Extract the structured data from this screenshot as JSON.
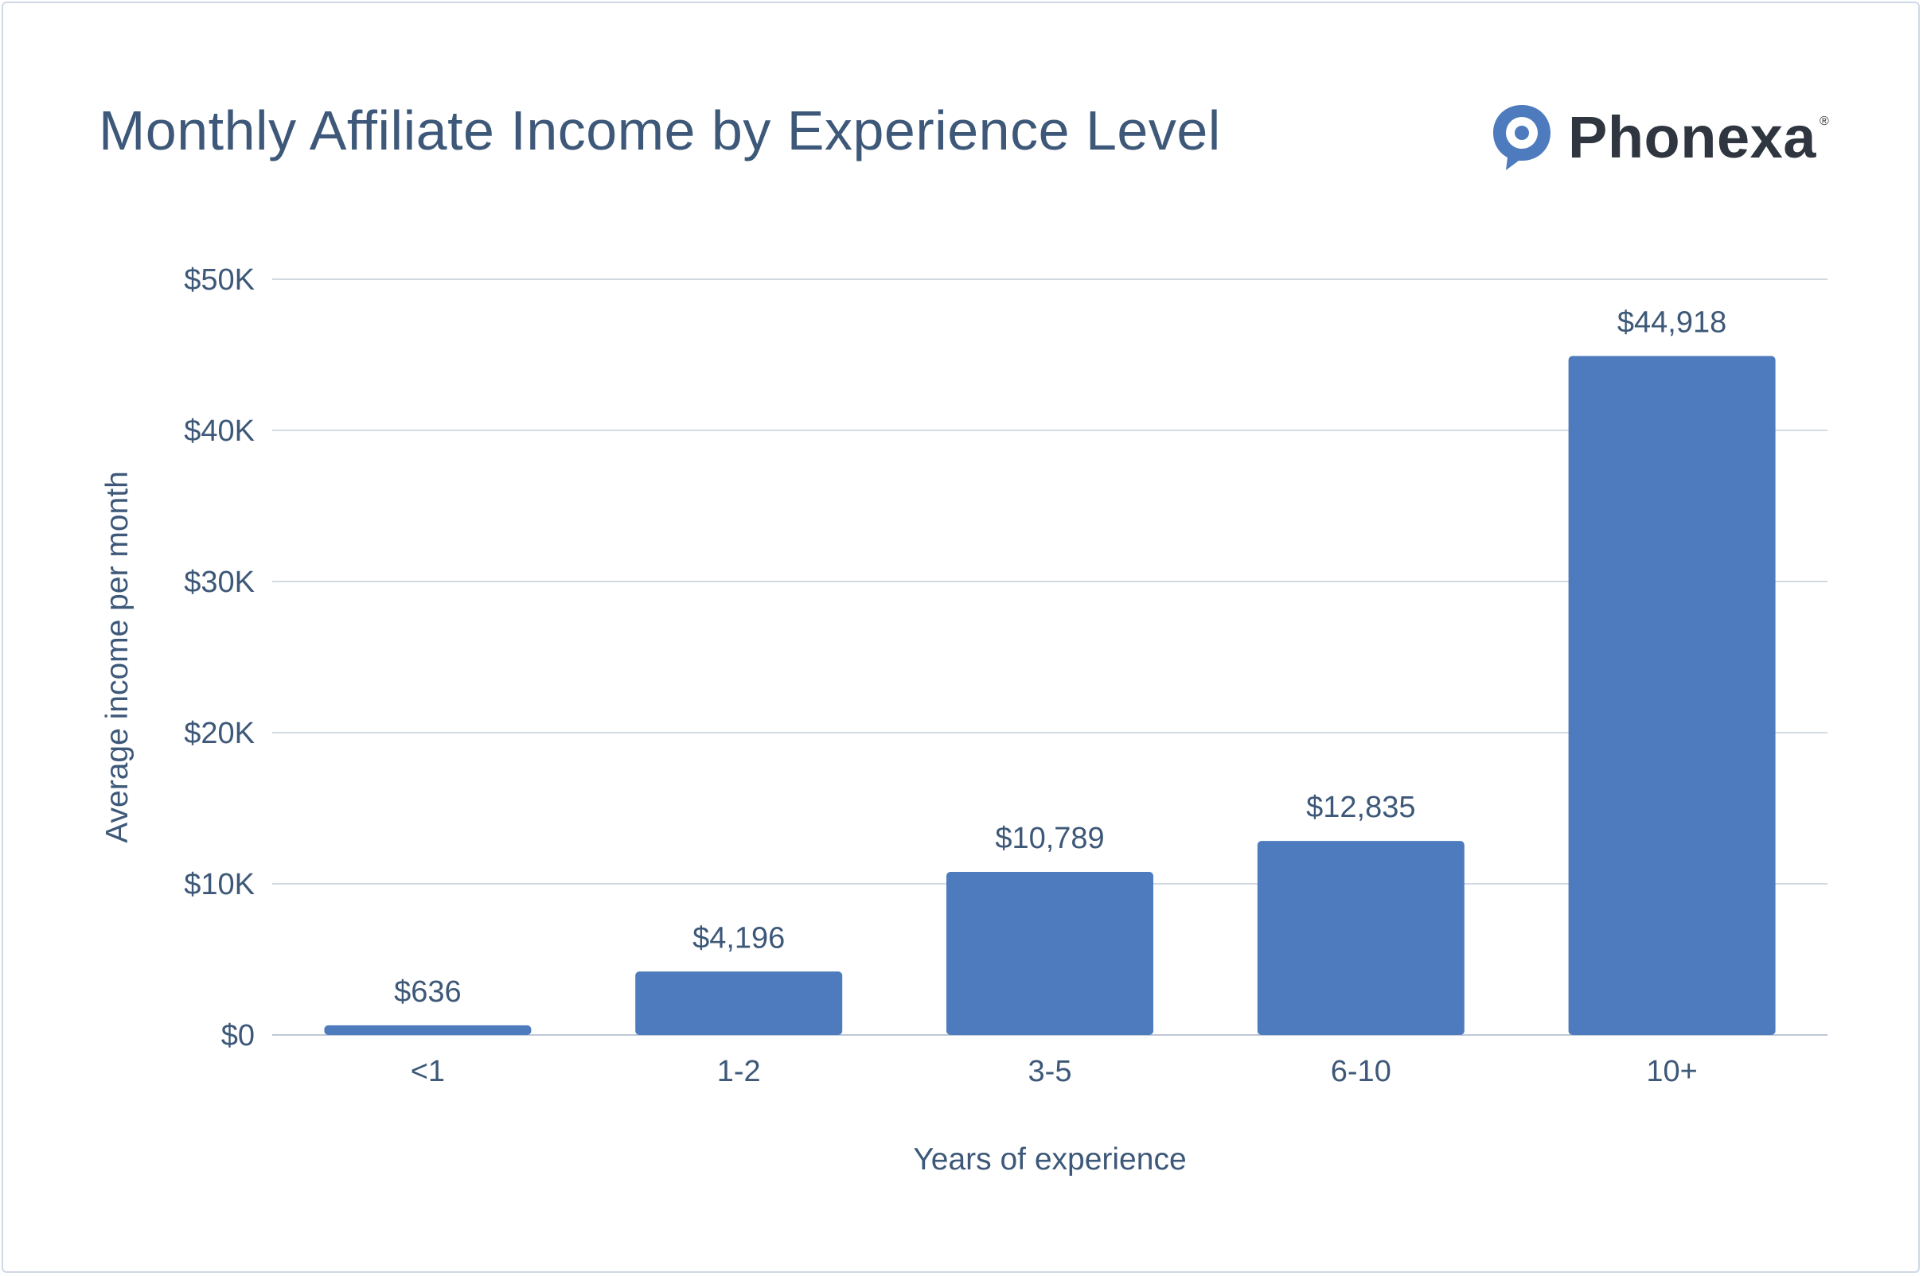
{
  "chart_data": {
    "type": "bar",
    "title": "Monthly Affiliate Income by Experience Level",
    "xlabel": "Years of experience",
    "ylabel": "Average income per month",
    "categories": [
      "<1",
      "1-2",
      "3-5",
      "6-10",
      "10+"
    ],
    "values": [
      636,
      4196,
      10789,
      12835,
      44918
    ],
    "data_labels": [
      "$636",
      "$4,196",
      "$10,789",
      "$12,835",
      "$44,918"
    ],
    "ylim": [
      0,
      50000
    ],
    "yticks": [
      0,
      10000,
      20000,
      30000,
      40000,
      50000
    ],
    "ytick_labels": [
      "$0",
      "$10K",
      "$20K",
      "$30K",
      "$40K",
      "$50K"
    ],
    "grid": true,
    "legend": "none",
    "bar_color": "#4e7bbd"
  },
  "brand": {
    "name": "Phonexa",
    "registered_mark": "®",
    "icon": "speech-bubble-logo-icon",
    "color": "#4e7bbd"
  }
}
